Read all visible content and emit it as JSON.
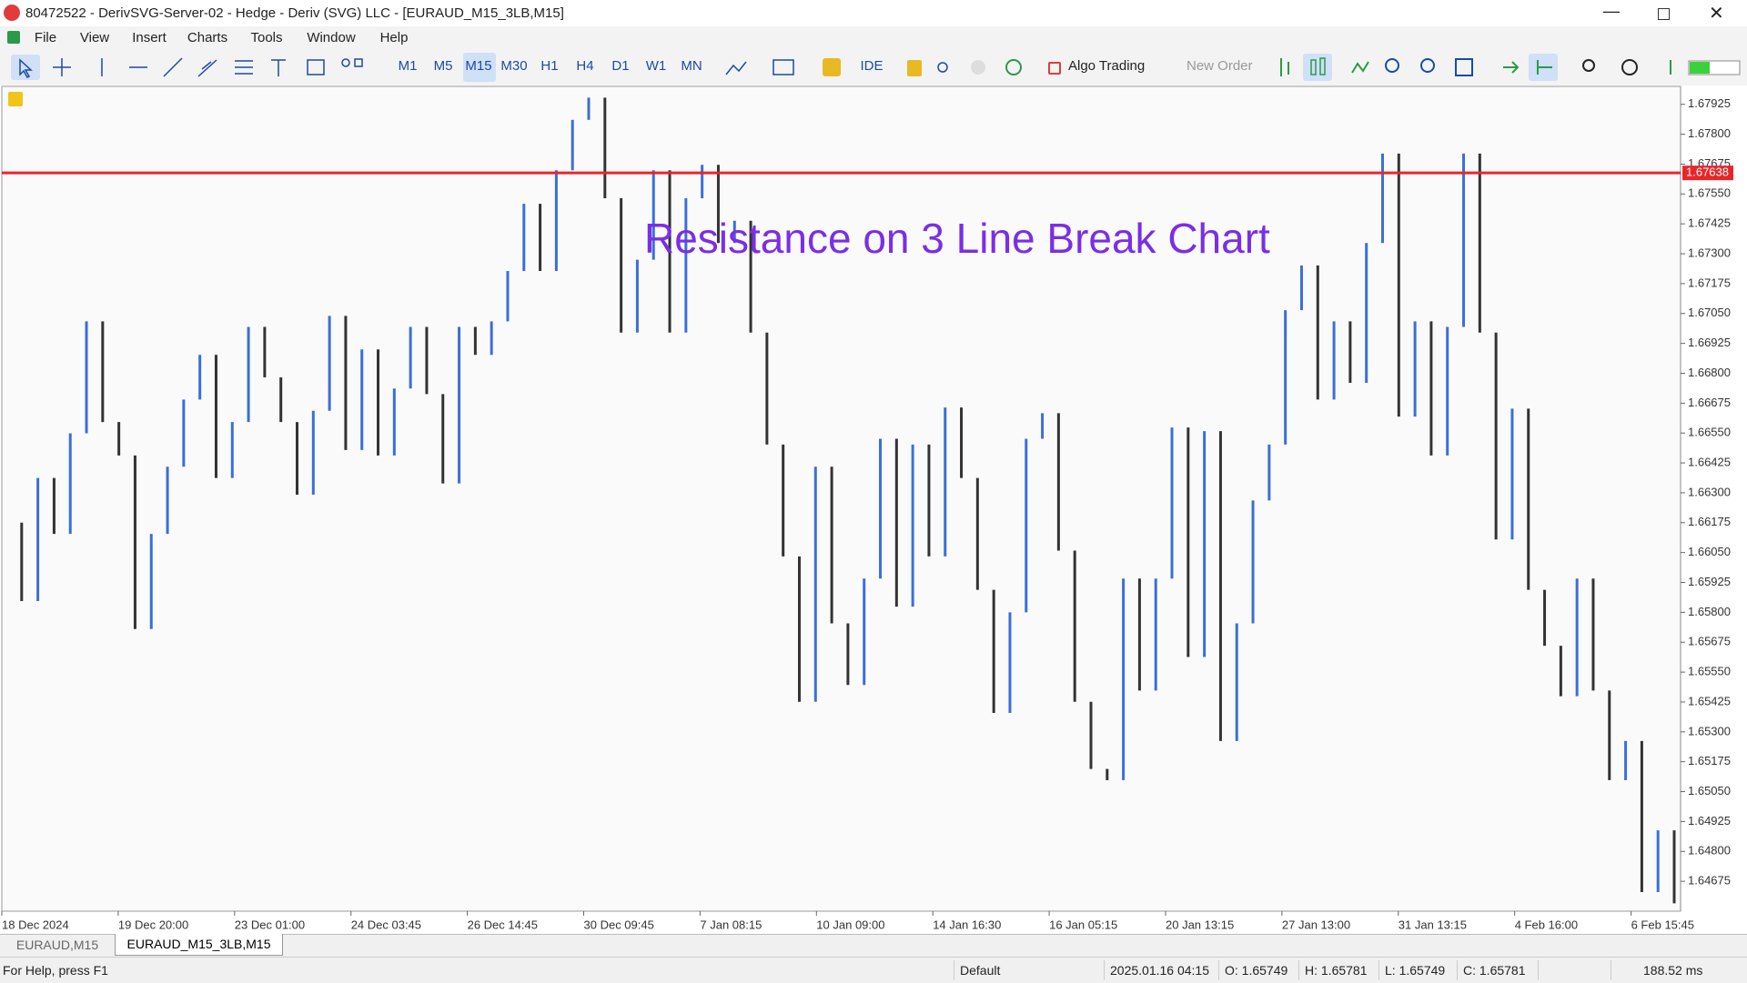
{
  "window": {
    "title": "80472522 - DerivSVG-Server-02 - Hedge - Deriv (SVG) LLC - [EURAUD_M15_3LB,M15]"
  },
  "menu": [
    "File",
    "View",
    "Insert",
    "Charts",
    "Tools",
    "Window",
    "Help"
  ],
  "toolbar": {
    "timeframes": [
      "M1",
      "M5",
      "M15",
      "M30",
      "H1",
      "H4",
      "D1",
      "W1",
      "MN"
    ],
    "ide": "IDE",
    "algo_trading": "Algo Trading",
    "new_order": "New Order"
  },
  "chart_data": {
    "type": "linebreak",
    "annotation": "Resistance on 3 Line Break Chart",
    "up_color": "#3a6fd8",
    "down_color": "#333333",
    "values": [
      1.66175,
      1.65847,
      1.66362,
      1.66128,
      1.66549,
      1.67017,
      1.66596,
      1.66456,
      1.6573,
      1.66128,
      1.66409,
      1.6669,
      1.66877,
      1.66362,
      1.66596,
      1.66994,
      1.66783,
      1.66596,
      1.66292,
      1.66643,
      1.6704,
      1.66479,
      1.669,
      1.66456,
      1.66736,
      1.66994,
      1.66713,
      1.66339,
      1.66994,
      1.66877,
      1.67017,
      1.67228,
      1.67509,
      1.67228,
      1.67649,
      1.6786,
      1.67953,
      1.67532,
      1.6697,
      1.67275,
      1.67649,
      1.6697,
      1.67532,
      1.67672,
      1.67345,
      1.67438,
      1.6697,
      1.66502,
      1.66034,
      1.65426,
      1.66409,
      1.65754,
      1.65496,
      1.65941,
      1.66526,
      1.65824,
      1.66502,
      1.66034,
      1.66657,
      1.66362,
      1.65894,
      1.65379,
      1.658,
      1.66526,
      1.66633,
      1.66058,
      1.65426,
      1.65145,
      1.65098,
      1.65941,
      1.65473,
      1.65941,
      1.66573,
      1.65613,
      1.66558,
      1.65262,
      1.65754,
      1.66268,
      1.66502,
      1.67064,
      1.67251,
      1.6669,
      1.67017,
      1.6676,
      1.67345,
      1.67719,
      1.66619,
      1.67017,
      1.66456,
      1.66994,
      1.67719,
      1.6697,
      1.66105,
      1.66652,
      1.65894,
      1.6566,
      1.65449,
      1.65941,
      1.65473,
      1.65098,
      1.65262,
      1.6463,
      1.64888,
      1.64583
    ],
    "ylim": [
      1.68,
      1.6455
    ],
    "yticks": [
      1.67925,
      {
        "value": 1.678,
        "label": "1.67800"
      },
      1.67675,
      {
        "value": 1.6755,
        "label": "1.67550"
      },
      1.67425,
      {
        "value": 1.673,
        "label": "1.67300"
      },
      1.67175,
      {
        "value": 1.6705,
        "label": "1.67050"
      },
      1.66925,
      {
        "value": 1.668,
        "label": "1.66800"
      },
      1.66675,
      {
        "value": 1.6655,
        "label": "1.66550"
      },
      1.66425,
      {
        "value": 1.663,
        "label": "1.66300"
      },
      1.66175,
      {
        "value": 1.6605,
        "label": "1.66050"
      },
      1.65925,
      {
        "value": 1.658,
        "label": "1.65800"
      },
      1.65675,
      {
        "value": 1.6555,
        "label": "1.65550"
      },
      1.65425,
      {
        "value": 1.653,
        "label": "1.65300"
      },
      1.65175,
      {
        "value": 1.6505,
        "label": "1.65050"
      },
      1.64925,
      {
        "value": 1.648,
        "label": "1.64800"
      },
      1.64675
    ],
    "xtick_labels": [
      "18 Dec 2024",
      "19 Dec 20:00",
      "23 Dec 01:00",
      "24 Dec 03:45",
      "26 Dec 14:45",
      "30 Dec 09:45",
      "7 Jan 08:15",
      "10 Jan 09:00",
      "14 Jan 16:30",
      "16 Jan 05:15",
      "20 Jan 13:15",
      "27 Jan 13:00",
      "31 Jan 13:15",
      "4 Feb 16:00",
      "6 Feb 15:45"
    ],
    "resistance": {
      "value": 1.67638,
      "color": "#e8262a"
    }
  },
  "tabs": [
    "EURAUD,M15",
    "EURAUD_M15_3LB,M15"
  ],
  "status": {
    "help": "For Help, press F1",
    "profile": "Default",
    "time": "2025.01.16 04:15",
    "open": "O: 1.65749",
    "high": "H: 1.65781",
    "low": "L: 1.65749",
    "close": "C: 1.65781",
    "ping": "188.52 ms"
  }
}
